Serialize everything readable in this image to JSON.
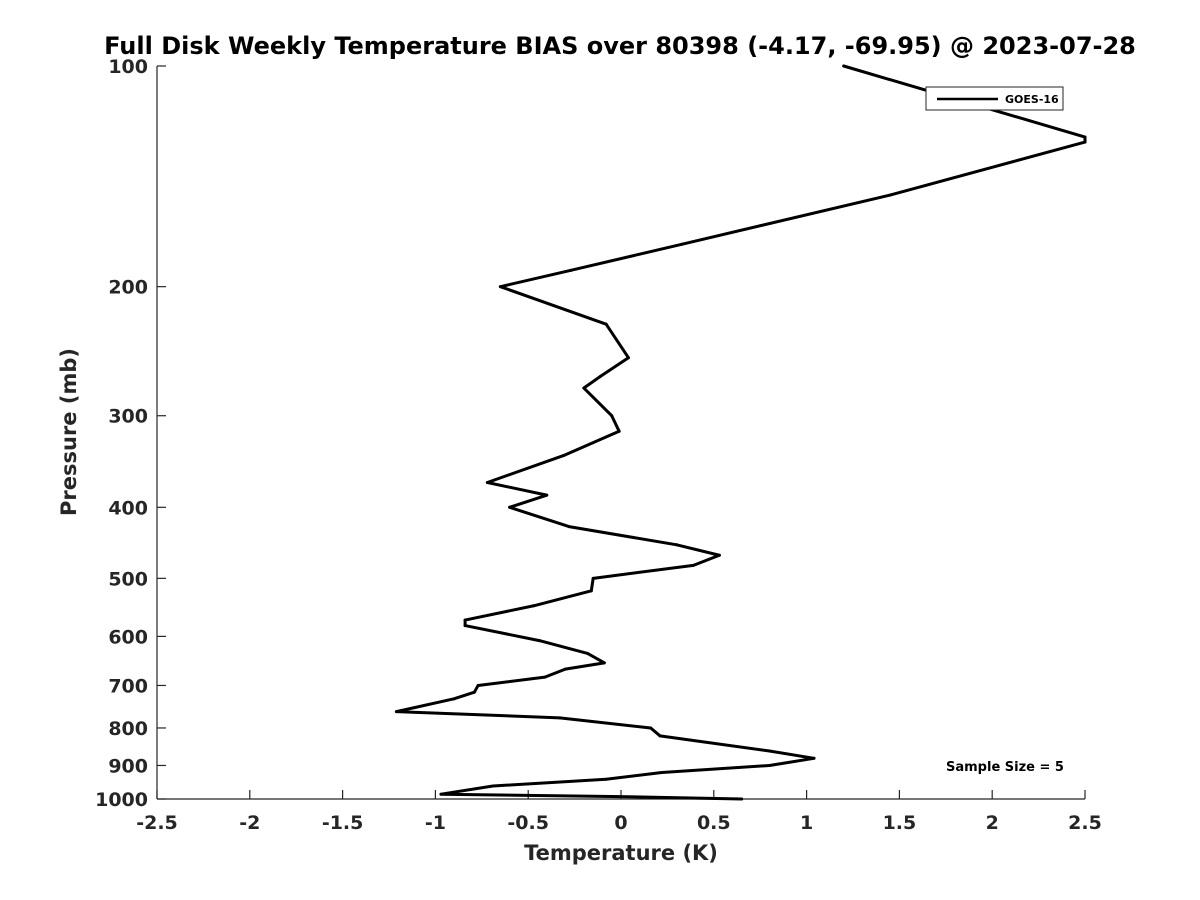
{
  "chart_data": {
    "type": "line",
    "title": "Full Disk Weekly Temperature BIAS over 80398 (-4.17, -69.95) @ 2023-07-28",
    "xlabel": "Temperature (K)",
    "ylabel": "Pressure (mb)",
    "xlim": [
      -2.5,
      2.5
    ],
    "ylim": [
      100,
      1000
    ],
    "y_scale": "log",
    "y_reversed": true,
    "x_ticks": [
      -2.5,
      -2,
      -1.5,
      -1,
      -0.5,
      0,
      0.5,
      1,
      1.5,
      2,
      2.5
    ],
    "x_tick_labels": [
      "-2.5",
      "-2",
      "-1.5",
      "-1",
      "-0.5",
      "0",
      "0.5",
      "1",
      "1.5",
      "2",
      "2.5"
    ],
    "y_ticks": [
      100,
      200,
      300,
      400,
      500,
      600,
      700,
      800,
      900,
      1000
    ],
    "y_tick_labels": [
      "100",
      "200",
      "300",
      "400",
      "500",
      "600",
      "700",
      "800",
      "900",
      "1000"
    ],
    "legend": {
      "location": "top-right",
      "entries": [
        "GOES-16"
      ]
    },
    "annotation": "Sample Size = 5",
    "series": [
      {
        "name": "GOES-16",
        "color": "#000000",
        "points": [
          {
            "x": 1.2,
            "y": 100
          },
          {
            "x": 2.5,
            "y": 125
          },
          {
            "x": 2.5,
            "y": 127
          },
          {
            "x": 1.45,
            "y": 150
          },
          {
            "x": 0.33,
            "y": 175
          },
          {
            "x": -0.27,
            "y": 190
          },
          {
            "x": -0.65,
            "y": 200
          },
          {
            "x": -0.08,
            "y": 225
          },
          {
            "x": 0.04,
            "y": 250
          },
          {
            "x": -0.11,
            "y": 265
          },
          {
            "x": -0.2,
            "y": 275
          },
          {
            "x": -0.05,
            "y": 300
          },
          {
            "x": -0.01,
            "y": 315
          },
          {
            "x": -0.31,
            "y": 340
          },
          {
            "x": -0.72,
            "y": 370
          },
          {
            "x": -0.4,
            "y": 385
          },
          {
            "x": -0.6,
            "y": 400
          },
          {
            "x": -0.28,
            "y": 425
          },
          {
            "x": 0.3,
            "y": 450
          },
          {
            "x": 0.53,
            "y": 465
          },
          {
            "x": 0.39,
            "y": 480
          },
          {
            "x": -0.15,
            "y": 500
          },
          {
            "x": -0.16,
            "y": 520
          },
          {
            "x": -0.47,
            "y": 545
          },
          {
            "x": -0.84,
            "y": 570
          },
          {
            "x": -0.84,
            "y": 580
          },
          {
            "x": -0.44,
            "y": 608
          },
          {
            "x": -0.18,
            "y": 633
          },
          {
            "x": -0.09,
            "y": 652
          },
          {
            "x": -0.3,
            "y": 665
          },
          {
            "x": -0.41,
            "y": 682
          },
          {
            "x": -0.77,
            "y": 700
          },
          {
            "x": -0.79,
            "y": 715
          },
          {
            "x": -0.9,
            "y": 730
          },
          {
            "x": -1.21,
            "y": 760
          },
          {
            "x": -0.33,
            "y": 775
          },
          {
            "x": 0.16,
            "y": 800
          },
          {
            "x": 0.21,
            "y": 820
          },
          {
            "x": 0.8,
            "y": 860
          },
          {
            "x": 1.04,
            "y": 880
          },
          {
            "x": 0.8,
            "y": 900
          },
          {
            "x": 0.22,
            "y": 920
          },
          {
            "x": -0.08,
            "y": 940
          },
          {
            "x": -0.69,
            "y": 960
          },
          {
            "x": -0.97,
            "y": 985
          },
          {
            "x": -0.05,
            "y": 992
          },
          {
            "x": 0.65,
            "y": 1000
          }
        ]
      }
    ]
  }
}
